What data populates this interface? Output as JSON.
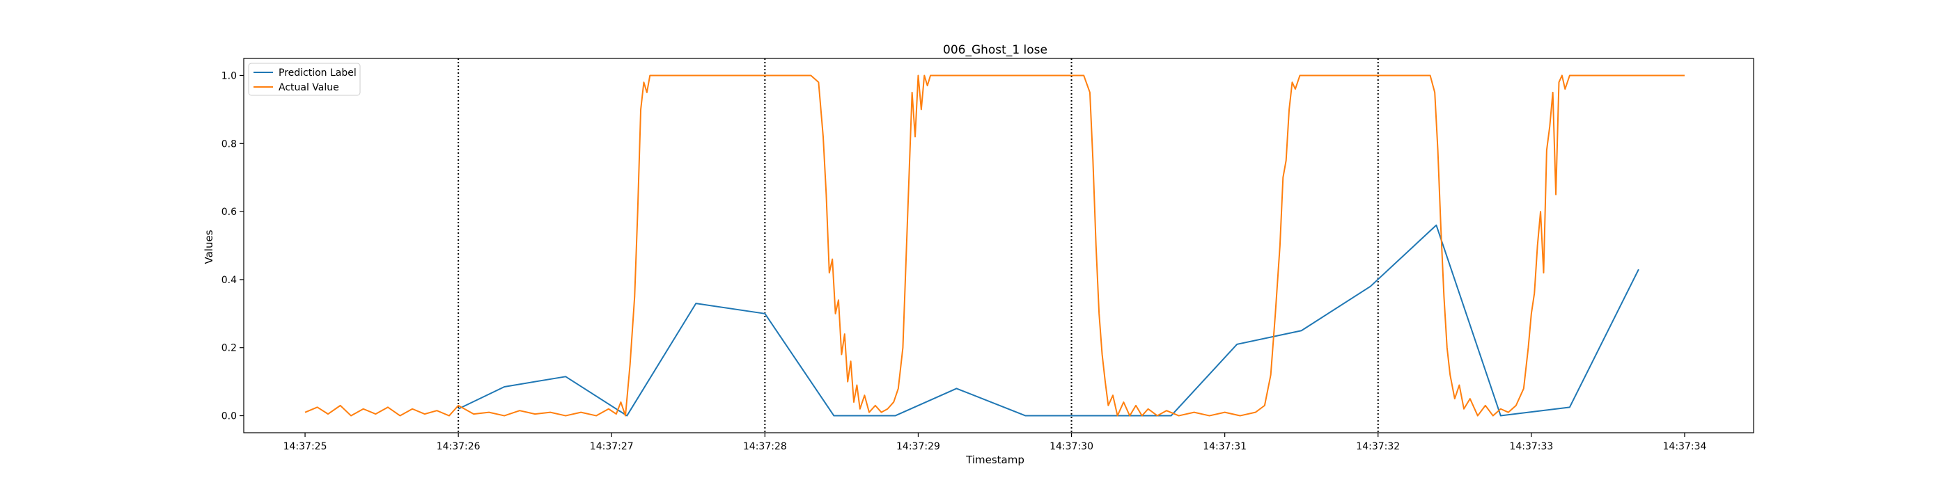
{
  "chart_data": {
    "type": "line",
    "title": "006_Ghost_1 lose",
    "xlabel": "Timestamp",
    "ylabel": "Values",
    "xlim": [
      "14:37:24.600",
      "14:37:34.450"
    ],
    "ylim": [
      -0.05,
      1.05
    ],
    "x_ticks": [
      "14:37:25",
      "14:37:26",
      "14:37:27",
      "14:37:28",
      "14:37:29",
      "14:37:30",
      "14:37:31",
      "14:37:32",
      "14:37:33",
      "14:37:34"
    ],
    "y_ticks": [
      "0.0",
      "0.2",
      "0.4",
      "0.6",
      "0.8",
      "1.0"
    ],
    "grid": false,
    "legend_position": "upper left",
    "vlines": {
      "style": "dotted",
      "color": "#000000",
      "x": [
        "14:37:26",
        "14:37:28",
        "14:37:30",
        "14:37:32"
      ]
    },
    "series": [
      {
        "name": "Prediction Label",
        "color": "#1f77b4",
        "points": [
          [
            "14:37:26.000",
            0.02
          ],
          [
            "14:37:26.300",
            0.085
          ],
          [
            "14:37:26.700",
            0.115
          ],
          [
            "14:37:27.100",
            0.0
          ],
          [
            "14:37:27.550",
            0.33
          ],
          [
            "14:37:28.000",
            0.3
          ],
          [
            "14:37:28.450",
            0.0
          ],
          [
            "14:37:28.850",
            0.0
          ],
          [
            "14:37:29.250",
            0.08
          ],
          [
            "14:37:29.700",
            0.0
          ],
          [
            "14:37:30.650",
            0.0
          ],
          [
            "14:37:31.080",
            0.21
          ],
          [
            "14:37:31.500",
            0.25
          ],
          [
            "14:37:31.950",
            0.38
          ],
          [
            "14:37:32.380",
            0.56
          ],
          [
            "14:37:32.800",
            0.0
          ],
          [
            "14:37:33.250",
            0.025
          ],
          [
            "14:37:33.700",
            0.43
          ]
        ]
      },
      {
        "name": "Actual Value",
        "color": "#ff7f0e",
        "points": [
          [
            "14:37:25.000",
            0.01
          ],
          [
            "14:37:25.080",
            0.025
          ],
          [
            "14:37:25.150",
            0.005
          ],
          [
            "14:37:25.230",
            0.03
          ],
          [
            "14:37:25.300",
            0.0
          ],
          [
            "14:37:25.380",
            0.02
          ],
          [
            "14:37:25.460",
            0.005
          ],
          [
            "14:37:25.540",
            0.025
          ],
          [
            "14:37:25.620",
            0.0
          ],
          [
            "14:37:25.700",
            0.02
          ],
          [
            "14:37:25.780",
            0.005
          ],
          [
            "14:37:25.860",
            0.015
          ],
          [
            "14:37:25.940",
            0.0
          ],
          [
            "14:37:26.000",
            0.03
          ],
          [
            "14:37:26.100",
            0.005
          ],
          [
            "14:37:26.200",
            0.01
          ],
          [
            "14:37:26.300",
            0.0
          ],
          [
            "14:37:26.400",
            0.015
          ],
          [
            "14:37:26.500",
            0.005
          ],
          [
            "14:37:26.600",
            0.01
          ],
          [
            "14:37:26.700",
            0.0
          ],
          [
            "14:37:26.800",
            0.01
          ],
          [
            "14:37:26.900",
            0.0
          ],
          [
            "14:37:26.980",
            0.02
          ],
          [
            "14:37:27.030",
            0.005
          ],
          [
            "14:37:27.060",
            0.04
          ],
          [
            "14:37:27.090",
            0.0
          ],
          [
            "14:37:27.120",
            0.15
          ],
          [
            "14:37:27.150",
            0.35
          ],
          [
            "14:37:27.170",
            0.6
          ],
          [
            "14:37:27.190",
            0.9
          ],
          [
            "14:37:27.210",
            0.98
          ],
          [
            "14:37:27.230",
            0.95
          ],
          [
            "14:37:27.250",
            1.0
          ],
          [
            "14:37:27.400",
            1.0
          ],
          [
            "14:37:28.300",
            1.0
          ],
          [
            "14:37:28.350",
            0.98
          ],
          [
            "14:37:28.380",
            0.82
          ],
          [
            "14:37:28.400",
            0.65
          ],
          [
            "14:37:28.420",
            0.42
          ],
          [
            "14:37:28.440",
            0.46
          ],
          [
            "14:37:28.460",
            0.3
          ],
          [
            "14:37:28.480",
            0.34
          ],
          [
            "14:37:28.500",
            0.18
          ],
          [
            "14:37:28.520",
            0.24
          ],
          [
            "14:37:28.540",
            0.1
          ],
          [
            "14:37:28.560",
            0.16
          ],
          [
            "14:37:28.580",
            0.04
          ],
          [
            "14:37:28.600",
            0.09
          ],
          [
            "14:37:28.620",
            0.02
          ],
          [
            "14:37:28.650",
            0.06
          ],
          [
            "14:37:28.680",
            0.01
          ],
          [
            "14:37:28.720",
            0.03
          ],
          [
            "14:37:28.760",
            0.01
          ],
          [
            "14:37:28.800",
            0.02
          ],
          [
            "14:37:28.840",
            0.04
          ],
          [
            "14:37:28.870",
            0.08
          ],
          [
            "14:37:28.900",
            0.2
          ],
          [
            "14:37:28.920",
            0.45
          ],
          [
            "14:37:28.940",
            0.7
          ],
          [
            "14:37:28.960",
            0.95
          ],
          [
            "14:37:28.980",
            0.82
          ],
          [
            "14:37:29.000",
            1.0
          ],
          [
            "14:37:29.020",
            0.9
          ],
          [
            "14:37:29.040",
            1.0
          ],
          [
            "14:37:29.060",
            0.97
          ],
          [
            "14:37:29.080",
            1.0
          ],
          [
            "14:37:29.500",
            1.0
          ],
          [
            "14:37:30.080",
            1.0
          ],
          [
            "14:37:30.120",
            0.95
          ],
          [
            "14:37:30.140",
            0.75
          ],
          [
            "14:37:30.160",
            0.5
          ],
          [
            "14:37:30.180",
            0.3
          ],
          [
            "14:37:30.200",
            0.18
          ],
          [
            "14:37:30.220",
            0.1
          ],
          [
            "14:37:30.240",
            0.03
          ],
          [
            "14:37:30.270",
            0.06
          ],
          [
            "14:37:30.300",
            0.0
          ],
          [
            "14:37:30.340",
            0.04
          ],
          [
            "14:37:30.380",
            0.0
          ],
          [
            "14:37:30.420",
            0.03
          ],
          [
            "14:37:30.460",
            0.0
          ],
          [
            "14:37:30.500",
            0.02
          ],
          [
            "14:37:30.560",
            0.0
          ],
          [
            "14:37:30.620",
            0.015
          ],
          [
            "14:37:30.700",
            0.0
          ],
          [
            "14:37:30.800",
            0.01
          ],
          [
            "14:37:30.900",
            0.0
          ],
          [
            "14:37:31.000",
            0.01
          ],
          [
            "14:37:31.100",
            0.0
          ],
          [
            "14:37:31.200",
            0.01
          ],
          [
            "14:37:31.260",
            0.03
          ],
          [
            "14:37:31.300",
            0.12
          ],
          [
            "14:37:31.330",
            0.3
          ],
          [
            "14:37:31.360",
            0.5
          ],
          [
            "14:37:31.380",
            0.7
          ],
          [
            "14:37:31.400",
            0.75
          ],
          [
            "14:37:31.420",
            0.9
          ],
          [
            "14:37:31.440",
            0.98
          ],
          [
            "14:37:31.460",
            0.96
          ],
          [
            "14:37:31.490",
            1.0
          ],
          [
            "14:37:31.800",
            1.0
          ],
          [
            "14:37:32.340",
            1.0
          ],
          [
            "14:37:32.370",
            0.95
          ],
          [
            "14:37:32.390",
            0.78
          ],
          [
            "14:37:32.410",
            0.55
          ],
          [
            "14:37:32.430",
            0.35
          ],
          [
            "14:37:32.450",
            0.2
          ],
          [
            "14:37:32.470",
            0.12
          ],
          [
            "14:37:32.500",
            0.05
          ],
          [
            "14:37:32.530",
            0.09
          ],
          [
            "14:37:32.560",
            0.02
          ],
          [
            "14:37:32.600",
            0.05
          ],
          [
            "14:37:32.650",
            0.0
          ],
          [
            "14:37:32.700",
            0.03
          ],
          [
            "14:37:32.750",
            0.0
          ],
          [
            "14:37:32.800",
            0.02
          ],
          [
            "14:37:32.850",
            0.01
          ],
          [
            "14:37:32.900",
            0.03
          ],
          [
            "14:37:32.950",
            0.08
          ],
          [
            "14:37:32.980",
            0.2
          ],
          [
            "14:37:33.000",
            0.3
          ],
          [
            "14:37:33.020",
            0.36
          ],
          [
            "14:37:33.040",
            0.5
          ],
          [
            "14:37:33.060",
            0.6
          ],
          [
            "14:37:33.080",
            0.42
          ],
          [
            "14:37:33.100",
            0.78
          ],
          [
            "14:37:33.120",
            0.85
          ],
          [
            "14:37:33.140",
            0.95
          ],
          [
            "14:37:33.160",
            0.65
          ],
          [
            "14:37:33.180",
            0.98
          ],
          [
            "14:37:33.200",
            1.0
          ],
          [
            "14:37:33.220",
            0.96
          ],
          [
            "14:37:33.250",
            1.0
          ],
          [
            "14:37:34.000",
            1.0
          ]
        ]
      }
    ]
  }
}
